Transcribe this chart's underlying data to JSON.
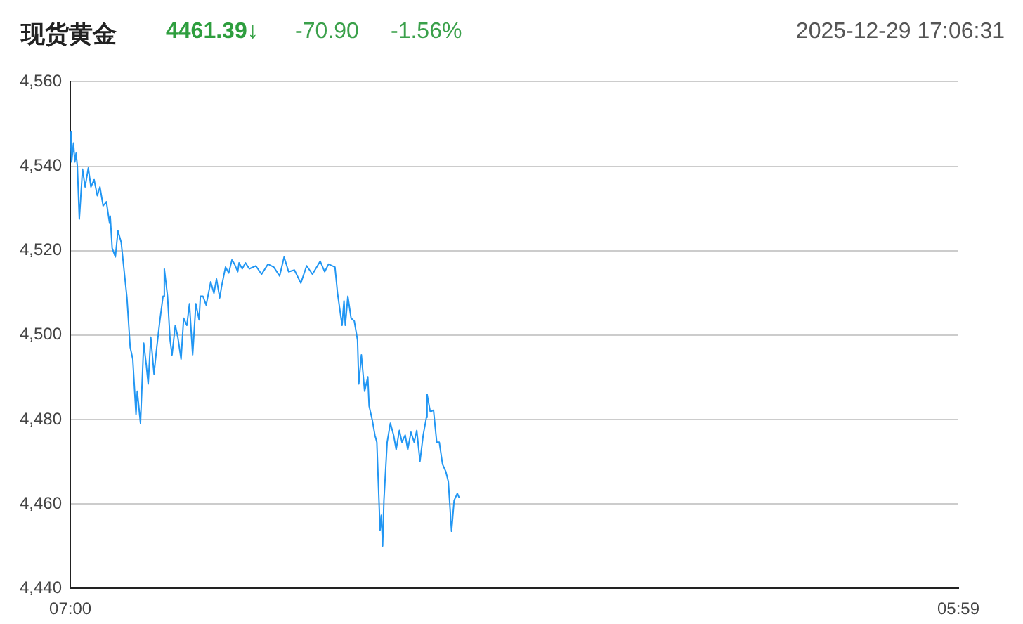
{
  "chart_data": {
    "type": "line",
    "title": "现货黄金",
    "annotations": [
      "4461.39↓",
      "-70.90",
      "-1.56%",
      "2025-12-29 17:06:31"
    ],
    "series": [
      {
        "color": "#2196f3",
        "x": [
          "2025-12-29T07:00",
          "2025-12-29T07:02",
          "2025-12-29T07:05",
          "2025-12-29T07:07",
          "2025-12-29T07:09",
          "2025-12-29T07:11",
          "2025-12-29T07:14",
          "2025-12-29T07:19",
          "2025-12-29T07:23",
          "2025-12-29T07:28",
          "2025-12-29T07:32",
          "2025-12-29T07:37",
          "2025-12-29T07:42",
          "2025-12-29T07:46",
          "2025-12-29T07:51",
          "2025-12-29T07:56",
          "2025-12-29T08:01",
          "2025-12-29T08:02",
          "2025-12-29T08:05",
          "2025-12-29T08:10",
          "2025-12-29T08:14",
          "2025-12-29T08:19",
          "2025-12-29T08:23",
          "2025-12-29T08:28",
          "2025-12-29T08:33",
          "2025-12-29T08:37",
          "2025-12-29T08:42",
          "2025-12-29T08:44",
          "2025-12-29T08:49",
          "2025-12-29T08:54",
          "2025-12-29T08:58",
          "2025-12-29T09:01",
          "2025-12-29T09:05",
          "2025-12-29T09:10",
          "2025-12-29T09:14",
          "2025-12-29T09:19",
          "2025-12-29T09:24",
          "2025-12-29T09:26",
          "2025-12-29T09:31",
          "2025-12-29T09:35",
          "2025-12-29T09:38",
          "2025-12-29T09:43",
          "2025-12-29T09:47",
          "2025-12-29T09:52",
          "2025-12-29T09:56",
          "2025-12-29T10:01",
          "2025-12-29T10:05",
          "2025-12-29T10:10",
          "2025-12-29T10:15",
          "2025-12-29T10:20",
          "2025-12-29T10:22",
          "2025-12-29T10:26",
          "2025-12-29T10:31",
          "2025-12-29T10:38",
          "2025-12-29T10:43",
          "2025-12-29T10:47",
          "2025-12-29T10:52",
          "2025-12-29T10:55",
          "2025-12-29T11:01",
          "2025-12-29T11:06",
          "2025-12-29T11:11",
          "2025-12-29T11:15",
          "2025-12-29T11:20",
          "2025-12-29T11:22",
          "2025-12-29T11:27",
          "2025-12-29T11:32",
          "2025-12-29T11:38",
          "2025-12-29T11:48",
          "2025-12-29T11:57",
          "2025-12-29T12:07",
          "2025-12-29T12:16",
          "2025-12-29T12:25",
          "2025-12-29T12:32",
          "2025-12-29T12:39",
          "2025-12-29T12:48",
          "2025-12-29T12:58",
          "2025-12-29T13:07",
          "2025-12-29T13:16",
          "2025-12-29T13:28",
          "2025-12-29T13:35",
          "2025-12-29T13:41",
          "2025-12-29T13:51",
          "2025-12-29T13:55",
          "2025-12-29T14:02",
          "2025-12-29T14:05",
          "2025-12-29T14:07",
          "2025-12-29T14:11",
          "2025-12-29T14:16",
          "2025-12-29T14:21",
          "2025-12-29T14:26",
          "2025-12-29T14:28",
          "2025-12-29T14:32",
          "2025-12-29T14:37",
          "2025-12-29T14:42",
          "2025-12-29T14:44",
          "2025-12-29T14:49",
          "2025-12-29T14:53",
          "2025-12-29T14:56",
          "2025-12-29T15:01",
          "2025-12-29T15:03",
          "2025-12-29T15:05",
          "2025-12-29T15:07",
          "2025-12-29T15:12",
          "2025-12-29T15:17",
          "2025-12-29T15:22",
          "2025-12-29T15:26",
          "2025-12-29T15:31",
          "2025-12-29T15:35",
          "2025-12-29T15:40",
          "2025-12-29T15:44",
          "2025-12-29T15:49",
          "2025-12-29T15:54",
          "2025-12-29T15:58",
          "2025-12-29T16:03",
          "2025-12-29T16:08",
          "2025-12-29T16:13",
          "2025-12-29T16:14",
          "2025-12-29T16:19",
          "2025-12-29T16:24",
          "2025-12-29T16:29",
          "2025-12-29T16:33",
          "2025-12-29T16:38",
          "2025-12-29T16:43",
          "2025-12-29T16:47",
          "2025-12-29T16:52",
          "2025-12-29T16:56",
          "2025-12-29T17:01",
          "2025-12-29T17:04"
        ],
        "values": [
          4548.2,
          4541.0,
          4545.5,
          4541.0,
          4543.1,
          4539.9,
          4527.5,
          4539.3,
          4535.1,
          4539.6,
          4535.1,
          4536.8,
          4533.0,
          4535.1,
          4530.6,
          4531.6,
          4526.5,
          4528.2,
          4520.6,
          4518.5,
          4524.7,
          4522.0,
          4516.1,
          4508.8,
          4497.1,
          4494.3,
          4481.2,
          4486.7,
          4479.1,
          4498.1,
          4492.9,
          4488.4,
          4499.5,
          4490.8,
          4496.7,
          4503.3,
          4509.2,
          4515.7,
          4509.2,
          4498.8,
          4495.3,
          4502.3,
          4499.5,
          4494.3,
          4504.0,
          4502.3,
          4507.4,
          4495.3,
          4507.4,
          4503.6,
          4509.2,
          4509.2,
          4507.1,
          4512.6,
          4509.9,
          4513.3,
          4508.8,
          4511.6,
          4516.1,
          4514.7,
          4517.8,
          4516.8,
          4515.0,
          4517.1,
          4515.7,
          4517.1,
          4515.7,
          4516.4,
          4514.4,
          4516.8,
          4516.1,
          4514.0,
          4518.5,
          4515.0,
          4515.4,
          4512.3,
          4516.4,
          4514.4,
          4517.5,
          4515.0,
          4516.8,
          4516.1,
          4509.9,
          4502.3,
          4508.1,
          4502.3,
          4509.2,
          4504.0,
          4503.3,
          4498.8,
          4488.4,
          4495.3,
          4486.7,
          4490.1,
          4483.2,
          4479.8,
          4476.3,
          4474.6,
          4453.8,
          4457.3,
          4450.0,
          4460.8,
          4474.6,
          4479.1,
          4476.3,
          4472.9,
          4477.4,
          4474.6,
          4476.3,
          4472.9,
          4477.0,
          4474.6,
          4477.4,
          4470.1,
          4476.3,
          4480.5,
          4486.0,
          4481.8,
          4482.2,
          4474.6,
          4474.6,
          4469.4,
          4467.7,
          4465.3,
          4453.5,
          4460.8,
          4462.5,
          4461.4
        ]
      }
    ],
    "xlim": [
      "2025-12-29T07:00",
      "2025-12-30T05:59"
    ],
    "xticks": [
      {
        "value": "2025-12-29T07:00",
        "label": "07:00"
      },
      {
        "value": "2025-12-30T05:59",
        "label": "05:59"
      }
    ],
    "ylim": [
      4440,
      4560
    ],
    "yticks": [
      {
        "value": 4440,
        "label": "4,440"
      },
      {
        "value": 4460,
        "label": "4,460"
      },
      {
        "value": 4480,
        "label": "4,480"
      },
      {
        "value": 4500,
        "label": "4,500"
      },
      {
        "value": 4520,
        "label": "4,520"
      },
      {
        "value": 4540,
        "label": "4,540"
      },
      {
        "value": 4560,
        "label": "4,560"
      }
    ],
    "grid": "y",
    "legend": false,
    "marker": "none",
    "line_style": "solid"
  }
}
